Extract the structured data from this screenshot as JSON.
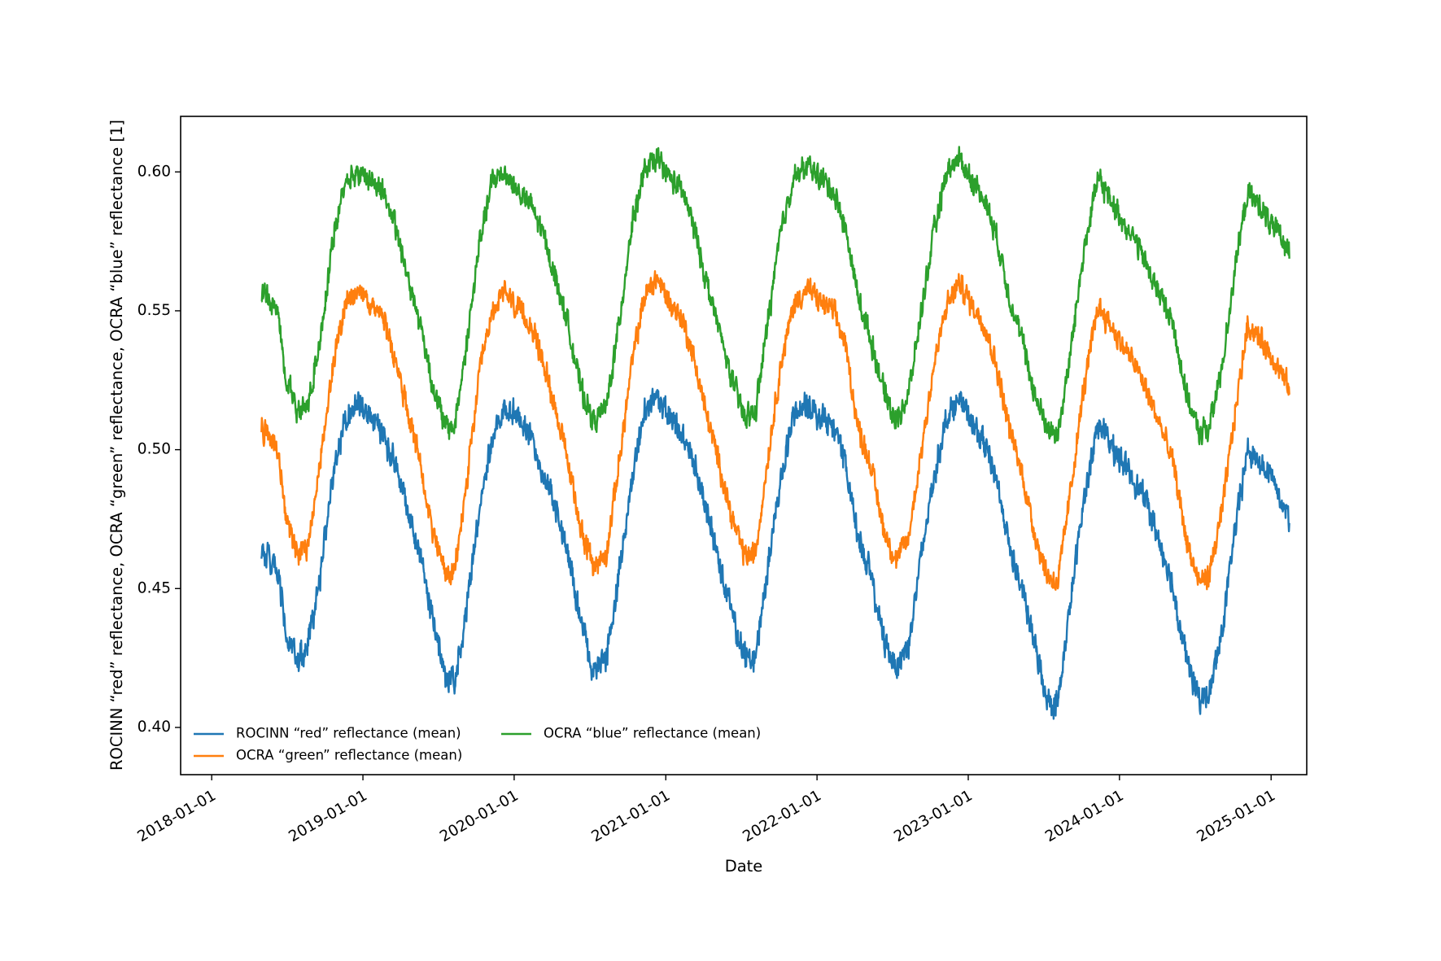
{
  "chart_data": {
    "type": "line",
    "title": "",
    "xlabel": "Date",
    "ylabel": "ROCINN “red” reflectance, OCRA “green” reflectance, OCRA “blue” reflectance [1]",
    "x_range": [
      "2017-10-18",
      "2025-03-28"
    ],
    "x_data_range": [
      "2018-05-01",
      "2025-02-14"
    ],
    "ylim": [
      0.383,
      0.62
    ],
    "x_ticks": [
      {
        "date": "2018-01-01",
        "label": "2018-01-01"
      },
      {
        "date": "2019-01-01",
        "label": "2019-01-01"
      },
      {
        "date": "2020-01-01",
        "label": "2020-01-01"
      },
      {
        "date": "2021-01-01",
        "label": "2021-01-01"
      },
      {
        "date": "2022-01-01",
        "label": "2022-01-01"
      },
      {
        "date": "2023-01-01",
        "label": "2023-01-01"
      },
      {
        "date": "2024-01-01",
        "label": "2024-01-01"
      },
      {
        "date": "2025-01-01",
        "label": "2025-01-01"
      }
    ],
    "y_ticks": [
      {
        "value": 0.4,
        "label": "0.40"
      },
      {
        "value": 0.45,
        "label": "0.45"
      },
      {
        "value": 0.5,
        "label": "0.50"
      },
      {
        "value": 0.55,
        "label": "0.55"
      },
      {
        "value": 0.6,
        "label": "0.60"
      }
    ],
    "grid": false,
    "legend_position": "lower-left",
    "series": [
      {
        "name": "ROCINN “red” reflectance (mean)",
        "color": "#1f77b4",
        "noise_amplitude": 0.0055,
        "keypoints": [
          [
            "2018-05-01",
            0.465
          ],
          [
            "2018-05-20",
            0.46
          ],
          [
            "2018-06-10",
            0.455
          ],
          [
            "2018-07-01",
            0.432
          ],
          [
            "2018-07-25",
            0.424
          ],
          [
            "2018-08-20",
            0.428
          ],
          [
            "2018-09-20",
            0.455
          ],
          [
            "2018-10-20",
            0.49
          ],
          [
            "2018-11-20",
            0.512
          ],
          [
            "2018-12-20",
            0.517
          ],
          [
            "2019-01-20",
            0.512
          ],
          [
            "2019-02-20",
            0.505
          ],
          [
            "2019-03-20",
            0.495
          ],
          [
            "2019-04-20",
            0.478
          ],
          [
            "2019-05-20",
            0.462
          ],
          [
            "2019-06-20",
            0.438
          ],
          [
            "2019-07-20",
            0.418
          ],
          [
            "2019-08-10",
            0.416
          ],
          [
            "2019-09-10",
            0.445
          ],
          [
            "2019-10-10",
            0.48
          ],
          [
            "2019-11-10",
            0.505
          ],
          [
            "2019-12-10",
            0.515
          ],
          [
            "2020-01-10",
            0.512
          ],
          [
            "2020-02-10",
            0.505
          ],
          [
            "2020-03-10",
            0.492
          ],
          [
            "2020-04-10",
            0.48
          ],
          [
            "2020-05-10",
            0.462
          ],
          [
            "2020-06-10",
            0.438
          ],
          [
            "2020-07-10",
            0.42
          ],
          [
            "2020-08-10",
            0.424
          ],
          [
            "2020-09-10",
            0.455
          ],
          [
            "2020-10-10",
            0.488
          ],
          [
            "2020-11-10",
            0.513
          ],
          [
            "2020-12-10",
            0.52
          ],
          [
            "2021-01-10",
            0.512
          ],
          [
            "2021-02-10",
            0.505
          ],
          [
            "2021-03-10",
            0.495
          ],
          [
            "2021-04-10",
            0.478
          ],
          [
            "2021-05-10",
            0.46
          ],
          [
            "2021-06-10",
            0.44
          ],
          [
            "2021-07-10",
            0.425
          ],
          [
            "2021-08-05",
            0.425
          ],
          [
            "2021-09-05",
            0.458
          ],
          [
            "2021-10-05",
            0.49
          ],
          [
            "2021-11-05",
            0.512
          ],
          [
            "2021-12-10",
            0.516
          ],
          [
            "2022-01-10",
            0.512
          ],
          [
            "2022-02-10",
            0.508
          ],
          [
            "2022-03-10",
            0.495
          ],
          [
            "2022-04-10",
            0.47
          ],
          [
            "2022-05-10",
            0.455
          ],
          [
            "2022-06-10",
            0.432
          ],
          [
            "2022-07-10",
            0.422
          ],
          [
            "2022-08-10",
            0.43
          ],
          [
            "2022-09-10",
            0.462
          ],
          [
            "2022-10-10",
            0.49
          ],
          [
            "2022-11-10",
            0.512
          ],
          [
            "2022-12-10",
            0.518
          ],
          [
            "2023-01-10",
            0.51
          ],
          [
            "2023-02-10",
            0.502
          ],
          [
            "2023-03-10",
            0.49
          ],
          [
            "2023-04-10",
            0.465
          ],
          [
            "2023-05-10",
            0.45
          ],
          [
            "2023-06-10",
            0.43
          ],
          [
            "2023-07-10",
            0.41
          ],
          [
            "2023-08-05",
            0.408
          ],
          [
            "2023-09-05",
            0.445
          ],
          [
            "2023-10-05",
            0.48
          ],
          [
            "2023-11-10",
            0.51
          ],
          [
            "2023-12-10",
            0.502
          ],
          [
            "2024-01-10",
            0.495
          ],
          [
            "2024-02-10",
            0.488
          ],
          [
            "2024-03-10",
            0.48
          ],
          [
            "2024-04-10",
            0.465
          ],
          [
            "2024-05-10",
            0.45
          ],
          [
            "2024-06-10",
            0.425
          ],
          [
            "2024-07-10",
            0.41
          ],
          [
            "2024-08-05",
            0.412
          ],
          [
            "2024-09-05",
            0.435
          ],
          [
            "2024-10-05",
            0.47
          ],
          [
            "2024-11-05",
            0.5
          ],
          [
            "2024-12-05",
            0.495
          ],
          [
            "2025-01-05",
            0.49
          ],
          [
            "2025-02-14",
            0.475
          ]
        ]
      },
      {
        "name": "OCRA “green” reflectance (mean)",
        "color": "#ff7f0e",
        "noise_amplitude": 0.005,
        "keypoints": [
          [
            "2018-05-01",
            0.508
          ],
          [
            "2018-05-20",
            0.505
          ],
          [
            "2018-06-10",
            0.5
          ],
          [
            "2018-07-01",
            0.475
          ],
          [
            "2018-07-25",
            0.463
          ],
          [
            "2018-08-20",
            0.465
          ],
          [
            "2018-09-20",
            0.495
          ],
          [
            "2018-10-20",
            0.53
          ],
          [
            "2018-11-20",
            0.552
          ],
          [
            "2018-12-20",
            0.557
          ],
          [
            "2019-01-20",
            0.553
          ],
          [
            "2019-02-20",
            0.547
          ],
          [
            "2019-03-20",
            0.533
          ],
          [
            "2019-04-20",
            0.512
          ],
          [
            "2019-05-20",
            0.495
          ],
          [
            "2019-06-20",
            0.47
          ],
          [
            "2019-07-20",
            0.455
          ],
          [
            "2019-08-10",
            0.455
          ],
          [
            "2019-09-10",
            0.49
          ],
          [
            "2019-10-10",
            0.528
          ],
          [
            "2019-11-10",
            0.55
          ],
          [
            "2019-12-10",
            0.557
          ],
          [
            "2020-01-10",
            0.55
          ],
          [
            "2020-02-10",
            0.545
          ],
          [
            "2020-03-10",
            0.532
          ],
          [
            "2020-04-10",
            0.515
          ],
          [
            "2020-05-10",
            0.495
          ],
          [
            "2020-06-10",
            0.472
          ],
          [
            "2020-07-10",
            0.458
          ],
          [
            "2020-08-10",
            0.462
          ],
          [
            "2020-09-10",
            0.495
          ],
          [
            "2020-10-10",
            0.53
          ],
          [
            "2020-11-10",
            0.555
          ],
          [
            "2020-12-10",
            0.562
          ],
          [
            "2021-01-10",
            0.553
          ],
          [
            "2021-02-10",
            0.547
          ],
          [
            "2021-03-10",
            0.533
          ],
          [
            "2021-04-10",
            0.512
          ],
          [
            "2021-05-10",
            0.495
          ],
          [
            "2021-06-10",
            0.475
          ],
          [
            "2021-07-10",
            0.462
          ],
          [
            "2021-08-05",
            0.462
          ],
          [
            "2021-09-05",
            0.498
          ],
          [
            "2021-10-05",
            0.53
          ],
          [
            "2021-11-05",
            0.552
          ],
          [
            "2021-12-10",
            0.558
          ],
          [
            "2022-01-10",
            0.553
          ],
          [
            "2022-02-10",
            0.55
          ],
          [
            "2022-03-10",
            0.538
          ],
          [
            "2022-04-10",
            0.508
          ],
          [
            "2022-05-10",
            0.495
          ],
          [
            "2022-06-10",
            0.472
          ],
          [
            "2022-07-10",
            0.46
          ],
          [
            "2022-08-10",
            0.468
          ],
          [
            "2022-09-10",
            0.5
          ],
          [
            "2022-10-10",
            0.53
          ],
          [
            "2022-11-10",
            0.552
          ],
          [
            "2022-12-10",
            0.56
          ],
          [
            "2023-01-10",
            0.552
          ],
          [
            "2023-02-10",
            0.545
          ],
          [
            "2023-03-10",
            0.53
          ],
          [
            "2023-04-10",
            0.508
          ],
          [
            "2023-05-10",
            0.492
          ],
          [
            "2023-06-10",
            0.47
          ],
          [
            "2023-07-10",
            0.455
          ],
          [
            "2023-08-05",
            0.452
          ],
          [
            "2023-09-05",
            0.485
          ],
          [
            "2023-10-05",
            0.52
          ],
          [
            "2023-11-10",
            0.552
          ],
          [
            "2023-12-10",
            0.545
          ],
          [
            "2024-01-10",
            0.537
          ],
          [
            "2024-02-10",
            0.53
          ],
          [
            "2024-03-10",
            0.52
          ],
          [
            "2024-04-10",
            0.508
          ],
          [
            "2024-05-10",
            0.495
          ],
          [
            "2024-06-10",
            0.468
          ],
          [
            "2024-07-10",
            0.452
          ],
          [
            "2024-08-05",
            0.455
          ],
          [
            "2024-09-05",
            0.478
          ],
          [
            "2024-10-05",
            0.512
          ],
          [
            "2024-11-05",
            0.545
          ],
          [
            "2024-12-05",
            0.54
          ],
          [
            "2025-01-05",
            0.533
          ],
          [
            "2025-02-14",
            0.522
          ]
        ]
      },
      {
        "name": "OCRA “blue” reflectance (mean)",
        "color": "#2ca02c",
        "noise_amplitude": 0.005,
        "keypoints": [
          [
            "2018-05-01",
            0.556
          ],
          [
            "2018-05-20",
            0.555
          ],
          [
            "2018-06-10",
            0.55
          ],
          [
            "2018-07-01",
            0.525
          ],
          [
            "2018-07-25",
            0.515
          ],
          [
            "2018-08-20",
            0.515
          ],
          [
            "2018-09-20",
            0.54
          ],
          [
            "2018-10-20",
            0.575
          ],
          [
            "2018-11-20",
            0.597
          ],
          [
            "2018-12-20",
            0.6
          ],
          [
            "2019-01-20",
            0.597
          ],
          [
            "2019-02-20",
            0.593
          ],
          [
            "2019-03-20",
            0.58
          ],
          [
            "2019-04-20",
            0.562
          ],
          [
            "2019-05-20",
            0.545
          ],
          [
            "2019-06-20",
            0.522
          ],
          [
            "2019-07-20",
            0.508
          ],
          [
            "2019-08-10",
            0.508
          ],
          [
            "2019-09-10",
            0.54
          ],
          [
            "2019-10-10",
            0.575
          ],
          [
            "2019-11-10",
            0.597
          ],
          [
            "2019-12-10",
            0.6
          ],
          [
            "2020-01-10",
            0.593
          ],
          [
            "2020-02-10",
            0.588
          ],
          [
            "2020-03-10",
            0.578
          ],
          [
            "2020-04-10",
            0.562
          ],
          [
            "2020-05-10",
            0.545
          ],
          [
            "2020-06-10",
            0.522
          ],
          [
            "2020-07-10",
            0.51
          ],
          [
            "2020-08-10",
            0.515
          ],
          [
            "2020-09-10",
            0.545
          ],
          [
            "2020-10-10",
            0.58
          ],
          [
            "2020-11-10",
            0.6
          ],
          [
            "2020-12-10",
            0.605
          ],
          [
            "2021-01-10",
            0.598
          ],
          [
            "2021-02-10",
            0.593
          ],
          [
            "2021-03-10",
            0.58
          ],
          [
            "2021-04-10",
            0.56
          ],
          [
            "2021-05-10",
            0.543
          ],
          [
            "2021-06-10",
            0.525
          ],
          [
            "2021-07-10",
            0.512
          ],
          [
            "2021-08-05",
            0.513
          ],
          [
            "2021-09-05",
            0.547
          ],
          [
            "2021-10-05",
            0.578
          ],
          [
            "2021-11-05",
            0.598
          ],
          [
            "2021-12-10",
            0.602
          ],
          [
            "2022-01-10",
            0.598
          ],
          [
            "2022-02-10",
            0.593
          ],
          [
            "2022-03-10",
            0.58
          ],
          [
            "2022-04-10",
            0.555
          ],
          [
            "2022-05-10",
            0.54
          ],
          [
            "2022-06-10",
            0.522
          ],
          [
            "2022-07-10",
            0.51
          ],
          [
            "2022-08-10",
            0.52
          ],
          [
            "2022-09-10",
            0.55
          ],
          [
            "2022-10-10",
            0.578
          ],
          [
            "2022-11-10",
            0.6
          ],
          [
            "2022-12-10",
            0.605
          ],
          [
            "2023-01-10",
            0.597
          ],
          [
            "2023-02-10",
            0.59
          ],
          [
            "2023-03-10",
            0.577
          ],
          [
            "2023-04-10",
            0.555
          ],
          [
            "2023-05-10",
            0.54
          ],
          [
            "2023-06-10",
            0.52
          ],
          [
            "2023-07-10",
            0.508
          ],
          [
            "2023-08-05",
            0.505
          ],
          [
            "2023-09-05",
            0.535
          ],
          [
            "2023-10-05",
            0.57
          ],
          [
            "2023-11-10",
            0.598
          ],
          [
            "2023-12-10",
            0.59
          ],
          [
            "2024-01-10",
            0.582
          ],
          [
            "2024-02-10",
            0.575
          ],
          [
            "2024-03-10",
            0.565
          ],
          [
            "2024-04-10",
            0.555
          ],
          [
            "2024-05-10",
            0.545
          ],
          [
            "2024-06-10",
            0.52
          ],
          [
            "2024-07-10",
            0.506
          ],
          [
            "2024-08-05",
            0.508
          ],
          [
            "2024-09-05",
            0.53
          ],
          [
            "2024-10-05",
            0.565
          ],
          [
            "2024-11-05",
            0.592
          ],
          [
            "2024-12-05",
            0.588
          ],
          [
            "2025-01-05",
            0.58
          ],
          [
            "2025-02-14",
            0.572
          ]
        ]
      }
    ]
  }
}
